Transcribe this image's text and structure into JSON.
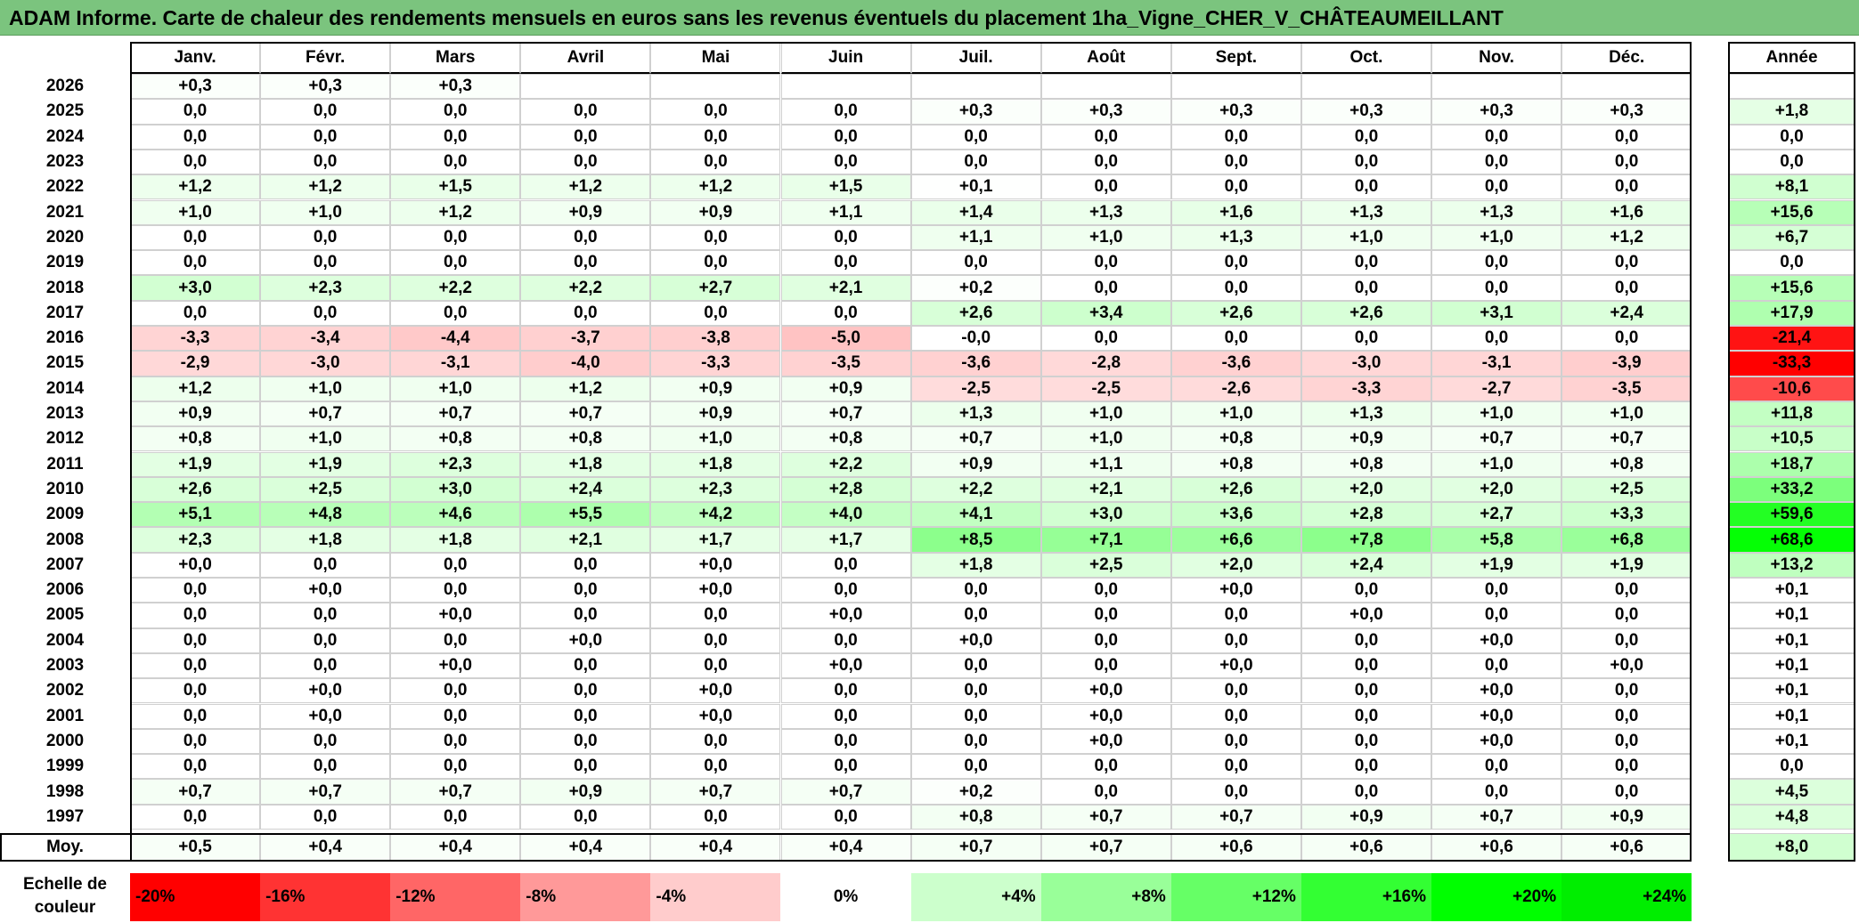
{
  "title": "ADAM Informe. Carte de chaleur des rendements mensuels en euros sans les revenus éventuels du placement 1ha_Vigne_CHER_V_CHÂTEAUMEILLANT",
  "chart_data": {
    "type": "heatmap",
    "columns": [
      "Janv.",
      "Févr.",
      "Mars",
      "Avril",
      "Mai",
      "Juin",
      "Juil.",
      "Août",
      "Sept.",
      "Oct.",
      "Nov.",
      "Déc."
    ],
    "annual_header": "Année",
    "rows": [
      {
        "year": "2026",
        "months": [
          "+0,3",
          "+0,3",
          "+0,3",
          "",
          "",
          "",
          "",
          "",
          "",
          "",
          "",
          ""
        ],
        "annual": ""
      },
      {
        "year": "2025",
        "months": [
          "0,0",
          "0,0",
          "0,0",
          "0,0",
          "0,0",
          "0,0",
          "+0,3",
          "+0,3",
          "+0,3",
          "+0,3",
          "+0,3",
          "+0,3"
        ],
        "annual": "+1,8"
      },
      {
        "year": "2024",
        "months": [
          "0,0",
          "0,0",
          "0,0",
          "0,0",
          "0,0",
          "0,0",
          "0,0",
          "0,0",
          "0,0",
          "0,0",
          "0,0",
          "0,0"
        ],
        "annual": "0,0"
      },
      {
        "year": "2023",
        "months": [
          "0,0",
          "0,0",
          "0,0",
          "0,0",
          "0,0",
          "0,0",
          "0,0",
          "0,0",
          "0,0",
          "0,0",
          "0,0",
          "0,0"
        ],
        "annual": "0,0"
      },
      {
        "year": "2022",
        "months": [
          "+1,2",
          "+1,2",
          "+1,5",
          "+1,2",
          "+1,2",
          "+1,5",
          "+0,1",
          "0,0",
          "0,0",
          "0,0",
          "0,0",
          "0,0"
        ],
        "annual": "+8,1"
      },
      {
        "year": "2021",
        "months": [
          "+1,0",
          "+1,0",
          "+1,2",
          "+0,9",
          "+0,9",
          "+1,1",
          "+1,4",
          "+1,3",
          "+1,6",
          "+1,3",
          "+1,3",
          "+1,6"
        ],
        "annual": "+15,6"
      },
      {
        "year": "2020",
        "months": [
          "0,0",
          "0,0",
          "0,0",
          "0,0",
          "0,0",
          "0,0",
          "+1,1",
          "+1,0",
          "+1,3",
          "+1,0",
          "+1,0",
          "+1,2"
        ],
        "annual": "+6,7"
      },
      {
        "year": "2019",
        "months": [
          "0,0",
          "0,0",
          "0,0",
          "0,0",
          "0,0",
          "0,0",
          "0,0",
          "0,0",
          "0,0",
          "0,0",
          "0,0",
          "0,0"
        ],
        "annual": "0,0"
      },
      {
        "year": "2018",
        "months": [
          "+3,0",
          "+2,3",
          "+2,2",
          "+2,2",
          "+2,7",
          "+2,1",
          "+0,2",
          "0,0",
          "0,0",
          "0,0",
          "0,0",
          "0,0"
        ],
        "annual": "+15,6"
      },
      {
        "year": "2017",
        "months": [
          "0,0",
          "0,0",
          "0,0",
          "0,0",
          "0,0",
          "0,0",
          "+2,6",
          "+3,4",
          "+2,6",
          "+2,6",
          "+3,1",
          "+2,4"
        ],
        "annual": "+17,9"
      },
      {
        "year": "2016",
        "months": [
          "-3,3",
          "-3,4",
          "-4,4",
          "-3,7",
          "-3,8",
          "-5,0",
          "-0,0",
          "0,0",
          "0,0",
          "0,0",
          "0,0",
          "0,0"
        ],
        "annual": "-21,4"
      },
      {
        "year": "2015",
        "months": [
          "-2,9",
          "-3,0",
          "-3,1",
          "-4,0",
          "-3,3",
          "-3,5",
          "-3,6",
          "-2,8",
          "-3,6",
          "-3,0",
          "-3,1",
          "-3,9"
        ],
        "annual": "-33,3"
      },
      {
        "year": "2014",
        "months": [
          "+1,2",
          "+1,0",
          "+1,0",
          "+1,2",
          "+0,9",
          "+0,9",
          "-2,5",
          "-2,5",
          "-2,6",
          "-3,3",
          "-2,7",
          "-3,5"
        ],
        "annual": "-10,6"
      },
      {
        "year": "2013",
        "months": [
          "+0,9",
          "+0,7",
          "+0,7",
          "+0,7",
          "+0,9",
          "+0,7",
          "+1,3",
          "+1,0",
          "+1,0",
          "+1,3",
          "+1,0",
          "+1,0"
        ],
        "annual": "+11,8"
      },
      {
        "year": "2012",
        "months": [
          "+0,8",
          "+1,0",
          "+0,8",
          "+0,8",
          "+1,0",
          "+0,8",
          "+0,7",
          "+1,0",
          "+0,8",
          "+0,9",
          "+0,7",
          "+0,7"
        ],
        "annual": "+10,5"
      },
      {
        "year": "2011",
        "months": [
          "+1,9",
          "+1,9",
          "+2,3",
          "+1,8",
          "+1,8",
          "+2,2",
          "+0,9",
          "+1,1",
          "+0,8",
          "+0,8",
          "+1,0",
          "+0,8"
        ],
        "annual": "+18,7"
      },
      {
        "year": "2010",
        "months": [
          "+2,6",
          "+2,5",
          "+3,0",
          "+2,4",
          "+2,3",
          "+2,8",
          "+2,2",
          "+2,1",
          "+2,6",
          "+2,0",
          "+2,0",
          "+2,5"
        ],
        "annual": "+33,2"
      },
      {
        "year": "2009",
        "months": [
          "+5,1",
          "+4,8",
          "+4,6",
          "+5,5",
          "+4,2",
          "+4,0",
          "+4,1",
          "+3,0",
          "+3,6",
          "+2,8",
          "+2,7",
          "+3,3"
        ],
        "annual": "+59,6"
      },
      {
        "year": "2008",
        "months": [
          "+2,3",
          "+1,8",
          "+1,8",
          "+2,1",
          "+1,7",
          "+1,7",
          "+8,5",
          "+7,1",
          "+6,6",
          "+7,8",
          "+5,8",
          "+6,8"
        ],
        "annual": "+68,6"
      },
      {
        "year": "2007",
        "months": [
          "+0,0",
          "0,0",
          "0,0",
          "0,0",
          "+0,0",
          "0,0",
          "+1,8",
          "+2,5",
          "+2,0",
          "+2,4",
          "+1,9",
          "+1,9"
        ],
        "annual": "+13,2"
      },
      {
        "year": "2006",
        "months": [
          "0,0",
          "+0,0",
          "0,0",
          "0,0",
          "+0,0",
          "0,0",
          "0,0",
          "0,0",
          "+0,0",
          "0,0",
          "0,0",
          "0,0"
        ],
        "annual": "+0,1"
      },
      {
        "year": "2005",
        "months": [
          "0,0",
          "0,0",
          "+0,0",
          "0,0",
          "0,0",
          "+0,0",
          "0,0",
          "0,0",
          "0,0",
          "+0,0",
          "0,0",
          "0,0"
        ],
        "annual": "+0,1"
      },
      {
        "year": "2004",
        "months": [
          "0,0",
          "0,0",
          "0,0",
          "+0,0",
          "0,0",
          "0,0",
          "+0,0",
          "0,0",
          "0,0",
          "0,0",
          "+0,0",
          "0,0"
        ],
        "annual": "+0,1"
      },
      {
        "year": "2003",
        "months": [
          "0,0",
          "0,0",
          "+0,0",
          "0,0",
          "0,0",
          "+0,0",
          "0,0",
          "0,0",
          "+0,0",
          "0,0",
          "0,0",
          "+0,0"
        ],
        "annual": "+0,1"
      },
      {
        "year": "2002",
        "months": [
          "0,0",
          "+0,0",
          "0,0",
          "0,0",
          "+0,0",
          "0,0",
          "0,0",
          "+0,0",
          "0,0",
          "0,0",
          "+0,0",
          "0,0"
        ],
        "annual": "+0,1"
      },
      {
        "year": "2001",
        "months": [
          "0,0",
          "+0,0",
          "0,0",
          "0,0",
          "+0,0",
          "0,0",
          "0,0",
          "+0,0",
          "0,0",
          "0,0",
          "+0,0",
          "0,0"
        ],
        "annual": "+0,1"
      },
      {
        "year": "2000",
        "months": [
          "0,0",
          "0,0",
          "0,0",
          "0,0",
          "0,0",
          "0,0",
          "0,0",
          "+0,0",
          "0,0",
          "0,0",
          "+0,0",
          "0,0"
        ],
        "annual": "+0,1"
      },
      {
        "year": "1999",
        "months": [
          "0,0",
          "0,0",
          "0,0",
          "0,0",
          "0,0",
          "0,0",
          "0,0",
          "0,0",
          "0,0",
          "0,0",
          "0,0",
          "0,0"
        ],
        "annual": "0,0"
      },
      {
        "year": "1998",
        "months": [
          "+0,7",
          "+0,7",
          "+0,7",
          "+0,9",
          "+0,7",
          "+0,7",
          "+0,2",
          "0,0",
          "0,0",
          "0,0",
          "0,0",
          "0,0"
        ],
        "annual": "+4,5"
      },
      {
        "year": "1997",
        "months": [
          "0,0",
          "0,0",
          "0,0",
          "0,0",
          "0,0",
          "0,0",
          "+0,8",
          "+0,7",
          "+0,7",
          "+0,9",
          "+0,7",
          "+0,9"
        ],
        "annual": "+4,8"
      }
    ],
    "average": {
      "label": "Moy.",
      "months": [
        "+0,5",
        "+0,4",
        "+0,4",
        "+0,4",
        "+0,4",
        "+0,4",
        "+0,7",
        "+0,7",
        "+0,6",
        "+0,6",
        "+0,6",
        "+0,6"
      ],
      "annual": "+8,0"
    },
    "color_scale": {
      "label": "Echelle de couleur",
      "stops": [
        {
          "label": "-20%",
          "color": "#ff0000"
        },
        {
          "label": "-16%",
          "color": "#ff3333"
        },
        {
          "label": "-12%",
          "color": "#ff6666"
        },
        {
          "label": "-8%",
          "color": "#ff9999"
        },
        {
          "label": "-4%",
          "color": "#ffcccc"
        },
        {
          "label": "0%",
          "color": "#ffffff"
        },
        {
          "label": "+4%",
          "color": "#ccffcc"
        },
        {
          "label": "+8%",
          "color": "#99ff99"
        },
        {
          "label": "+12%",
          "color": "#66ff66"
        },
        {
          "label": "+16%",
          "color": "#33ff33"
        },
        {
          "label": "+20%",
          "color": "#00ff00"
        },
        {
          "label": "+24%",
          "color": "#00ee00"
        }
      ]
    }
  }
}
